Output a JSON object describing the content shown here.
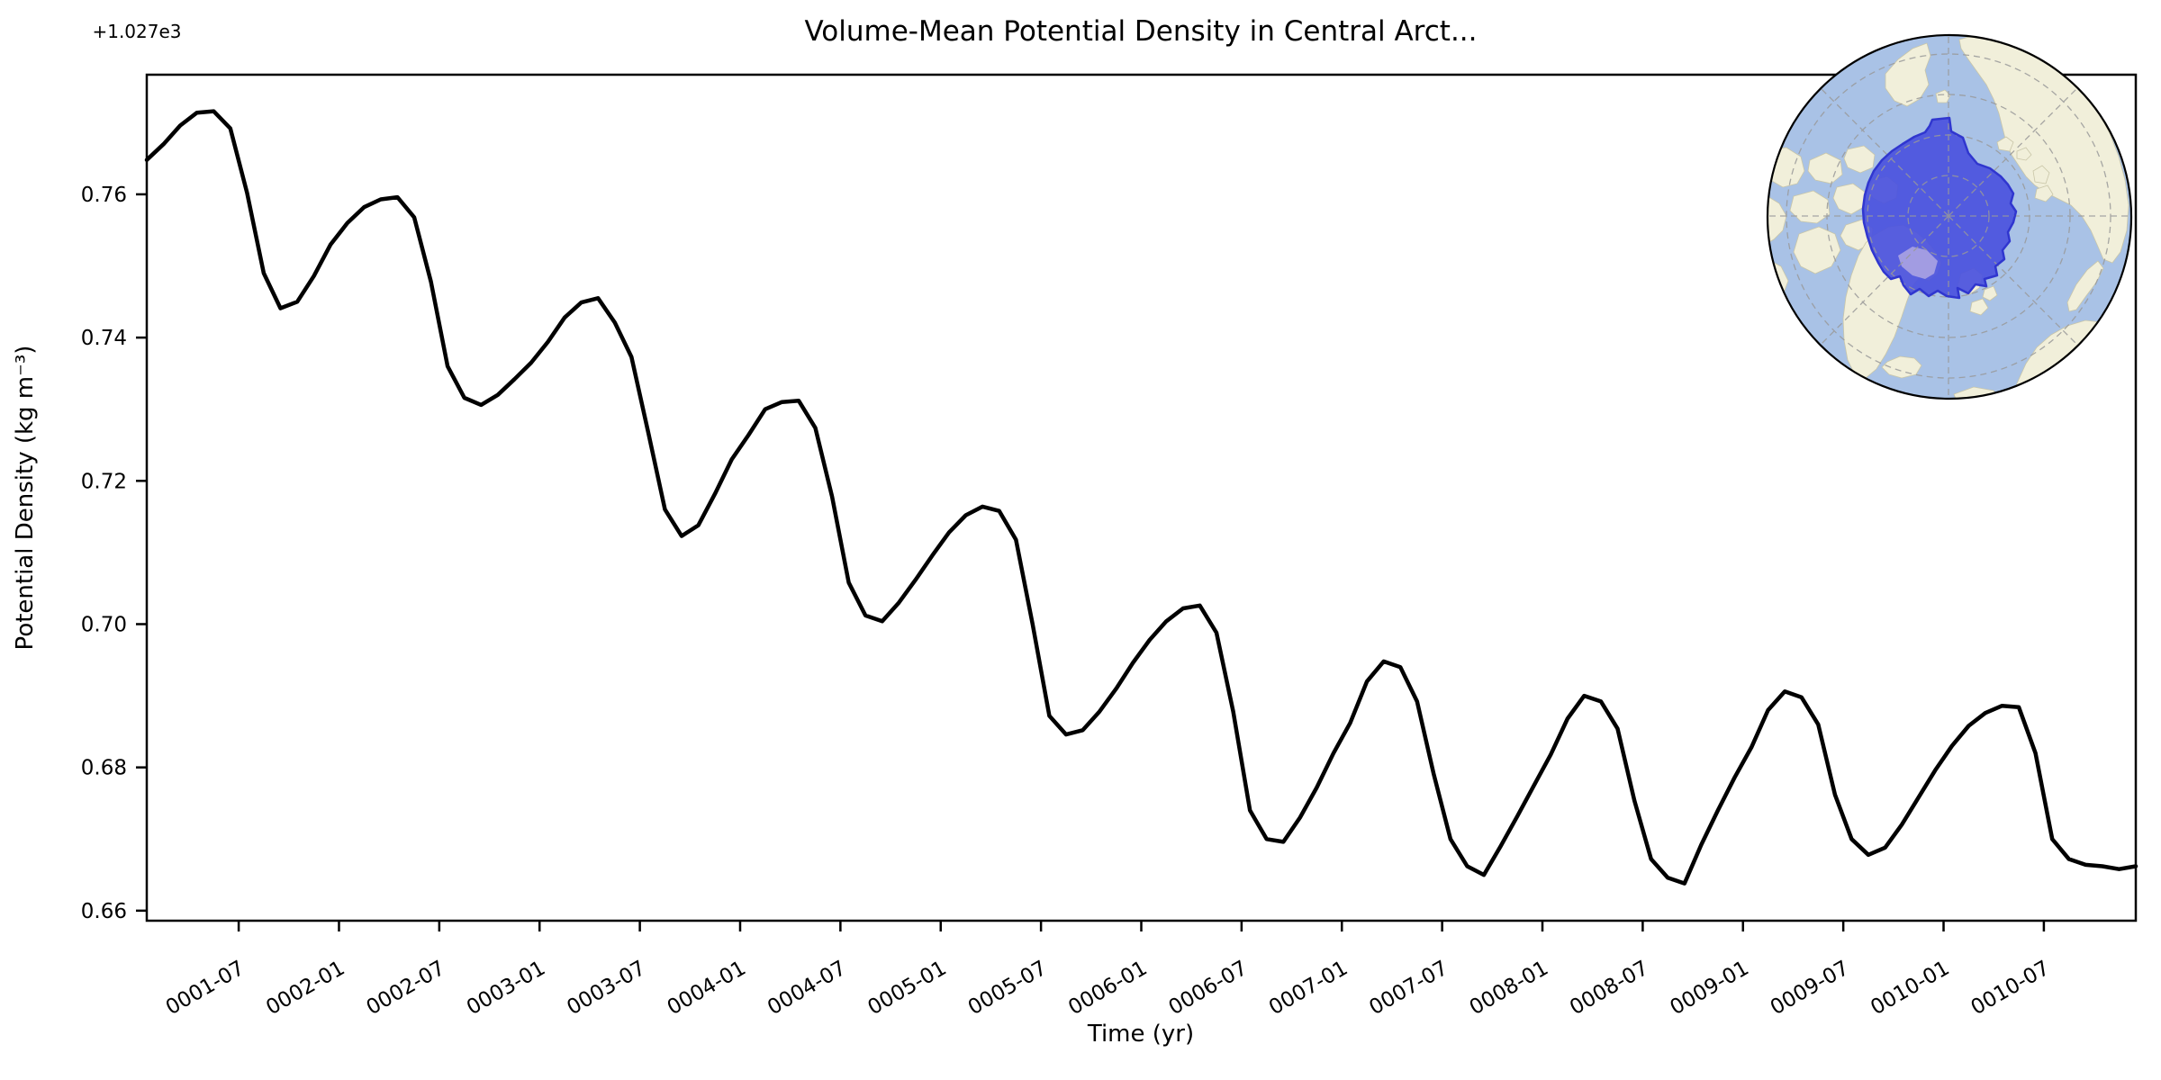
{
  "title": "Volume-Mean Potential Density in Central Arct...",
  "axes": {
    "xlabel": "Time (yr)",
    "ylabel": "Potential Density (kg m⁻³)",
    "offset_text": "+1.027e3"
  },
  "chart_data": {
    "type": "line",
    "title": "Volume-Mean Potential Density in Central Arct...",
    "xlabel": "Time (yr)",
    "ylabel": "Potential Density (kg m⁻³)",
    "y_offset_base": 1027,
    "ylim": [
      0.6586,
      0.7767
    ],
    "x_months_range": [
      0.5,
      119.5
    ],
    "grid": false,
    "legend": null,
    "line_color": "#000000",
    "line_width": 4.5,
    "y_ticks": [
      {
        "value": 0.66,
        "label": "0.66"
      },
      {
        "value": 0.68,
        "label": "0.68"
      },
      {
        "value": 0.7,
        "label": "0.70"
      },
      {
        "value": 0.72,
        "label": "0.72"
      },
      {
        "value": 0.74,
        "label": "0.74"
      },
      {
        "value": 0.76,
        "label": "0.76"
      }
    ],
    "x_ticks": [
      {
        "month": 6,
        "label": "0001-07"
      },
      {
        "month": 12,
        "label": "0002-01"
      },
      {
        "month": 18,
        "label": "0002-07"
      },
      {
        "month": 24,
        "label": "0003-01"
      },
      {
        "month": 30,
        "label": "0003-07"
      },
      {
        "month": 36,
        "label": "0004-01"
      },
      {
        "month": 42,
        "label": "0004-07"
      },
      {
        "month": 48,
        "label": "0005-01"
      },
      {
        "month": 54,
        "label": "0005-07"
      },
      {
        "month": 60,
        "label": "0006-01"
      },
      {
        "month": 66,
        "label": "0006-07"
      },
      {
        "month": 72,
        "label": "0007-01"
      },
      {
        "month": 78,
        "label": "0007-07"
      },
      {
        "month": 84,
        "label": "0008-01"
      },
      {
        "month": 90,
        "label": "0008-07"
      },
      {
        "month": 96,
        "label": "0009-01"
      },
      {
        "month": 102,
        "label": "0009-07"
      },
      {
        "month": 108,
        "label": "0010-01"
      },
      {
        "month": 114,
        "label": "0010-07"
      }
    ],
    "series": [
      {
        "name": "Volume-mean potential density (monthly means)",
        "x_start": "0001-01",
        "x_end": "0010-12",
        "cadence": "monthly",
        "values": [
          0.7648,
          0.767,
          0.7696,
          0.7714,
          0.7716,
          0.7692,
          0.7602,
          0.749,
          0.7441,
          0.745,
          0.7486,
          0.753,
          0.756,
          0.7582,
          0.7593,
          0.7596,
          0.7568,
          0.7478,
          0.736,
          0.7316,
          0.7306,
          0.732,
          0.7342,
          0.7365,
          0.7394,
          0.7428,
          0.7449,
          0.7455,
          0.7421,
          0.7373,
          0.7268,
          0.716,
          0.7123,
          0.7138,
          0.7182,
          0.723,
          0.7264,
          0.73,
          0.731,
          0.7312,
          0.7274,
          0.7178,
          0.7058,
          0.7012,
          0.7004,
          0.703,
          0.7062,
          0.7096,
          0.7128,
          0.7152,
          0.7164,
          0.7158,
          0.7118,
          0.7,
          0.6872,
          0.6846,
          0.6852,
          0.6878,
          0.691,
          0.6946,
          0.6978,
          0.7004,
          0.7022,
          0.7026,
          0.6988,
          0.6878,
          0.674,
          0.67,
          0.6696,
          0.673,
          0.6772,
          0.682,
          0.6862,
          0.692,
          0.6948,
          0.694,
          0.6892,
          0.679,
          0.67,
          0.6662,
          0.665,
          0.669,
          0.6732,
          0.6775,
          0.6818,
          0.6868,
          0.69,
          0.6892,
          0.6854,
          0.6754,
          0.6672,
          0.6646,
          0.6638,
          0.6692,
          0.674,
          0.6786,
          0.6828,
          0.688,
          0.6906,
          0.6898,
          0.686,
          0.6762,
          0.67,
          0.6678,
          0.6688,
          0.672,
          0.6758,
          0.6796,
          0.683,
          0.6858,
          0.6876,
          0.6886,
          0.6884,
          0.682,
          0.67,
          0.6672,
          0.6664,
          0.6662,
          0.6658,
          0.6662
        ]
      }
    ]
  },
  "inset_map": {
    "description": "North polar stereographic inset map highlighting the Central Arctic region",
    "colors": {
      "ocean": "#a9c2e6",
      "land": "#f1efda",
      "region_fill": "#4b53de",
      "region_fill_over_land": "#a79fe2",
      "region_border": "#3036cf",
      "graticule": "#999999",
      "outline": "#000000"
    }
  }
}
